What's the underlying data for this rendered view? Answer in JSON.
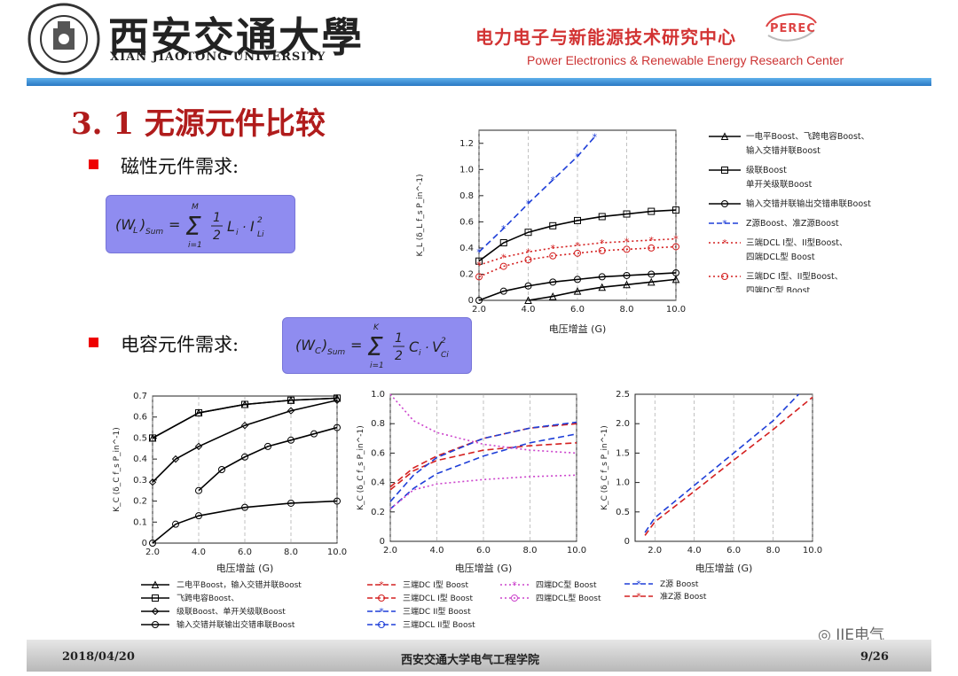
{
  "header": {
    "university_cn": "西安交通大學",
    "university_en": "XIAN JIAOTONG UNIVERSITY",
    "center_cn": "电力电子与新能源技术研究中心",
    "center_en": "Power Electronics & Renewable Energy Research Center",
    "center_logo": "PEREC"
  },
  "slide": {
    "title": "3. 1 无源元件比较",
    "magnetic_req": "磁性元件需求:",
    "capacitor_req": "电容元件需求:"
  },
  "formulas": {
    "magnetic": {
      "lhs": "(W",
      "lhs_sub": "L",
      "lhs_close": ")",
      "lhs_sub2": "Sum",
      "upper": "M",
      "lower": "i=1",
      "body": "L",
      "body_sub": "i",
      "term": "I",
      "term_sub": "Li",
      "term_sup": "2"
    },
    "capacitor": {
      "lhs": "(W",
      "lhs_sub": "C",
      "lhs_close": ")",
      "lhs_sub2": "Sum",
      "upper": "K",
      "lower": "i=1",
      "body": "C",
      "body_sub": "i",
      "term": "V",
      "term_sub": "Ci",
      "term_sup": "2"
    }
  },
  "chart_data": [
    {
      "type": "line",
      "xlabel": "电压增益 (G)",
      "ylabel": "K_L (δ_L f_s P_in^-1)",
      "xlim": [
        2.0,
        10.0
      ],
      "ylim": [
        0,
        1.3
      ],
      "xticks": [
        "2.0",
        "4.0",
        "6.0",
        "8.0",
        "10.0"
      ],
      "yticks": [
        "0",
        "0.2",
        "0.4",
        "0.6",
        "0.8",
        "1.0",
        "1.2"
      ],
      "series": [
        {
          "name": "一电平Boost、飞跨电容Boost、输入交错并联Boost",
          "color": "#000000",
          "dash": "solid",
          "marker": "triangle",
          "x": [
            4,
            5,
            6,
            7,
            8,
            9,
            10
          ],
          "y": [
            0.0,
            0.03,
            0.07,
            0.1,
            0.12,
            0.14,
            0.16
          ]
        },
        {
          "name": "级联Boost 单开关级联Boost",
          "color": "#000000",
          "dash": "solid",
          "marker": "square",
          "x": [
            2,
            3,
            4,
            5,
            6,
            7,
            8,
            9,
            10
          ],
          "y": [
            0.3,
            0.44,
            0.52,
            0.57,
            0.61,
            0.64,
            0.66,
            0.68,
            0.69
          ]
        },
        {
          "name": "输入交错并联输出交错串联Boost",
          "color": "#000000",
          "dash": "solid",
          "marker": "circle",
          "x": [
            2,
            3,
            4,
            5,
            6,
            7,
            8,
            9,
            10
          ],
          "y": [
            0.0,
            0.07,
            0.11,
            0.14,
            0.16,
            0.18,
            0.19,
            0.2,
            0.21
          ]
        },
        {
          "name": "Z源Boost、准Z源Boost",
          "color": "#1f3fd8",
          "dash": "dash",
          "marker": "asterisk",
          "x": [
            2,
            3,
            4,
            5,
            6,
            6.7
          ],
          "y": [
            0.37,
            0.55,
            0.74,
            0.92,
            1.1,
            1.25
          ]
        },
        {
          "name": "三端DCL I型、II型Boost、四端DCL型 Boost",
          "color": "#d42020",
          "dash": "dot",
          "marker": "asterisk",
          "x": [
            2,
            3,
            4,
            5,
            6,
            7,
            8,
            9,
            10
          ],
          "y": [
            0.27,
            0.33,
            0.37,
            0.4,
            0.42,
            0.44,
            0.45,
            0.46,
            0.47
          ]
        },
        {
          "name": "三端DC I型、II型Boost、四端DC型 Boost",
          "color": "#d42020",
          "dash": "dot",
          "marker": "circle",
          "x": [
            2,
            3,
            4,
            5,
            6,
            7,
            8,
            9,
            10
          ],
          "y": [
            0.18,
            0.26,
            0.31,
            0.34,
            0.36,
            0.38,
            0.39,
            0.4,
            0.41
          ]
        }
      ]
    },
    {
      "type": "line",
      "xlabel": "电压增益 (G)",
      "ylabel": "K_C (δ_C f_s P_in^-1)",
      "xlim": [
        2.0,
        10.0
      ],
      "ylim": [
        0,
        0.7
      ],
      "xticks": [
        "2.0",
        "4.0",
        "6.0",
        "8.0",
        "10.0"
      ],
      "yticks": [
        "0",
        "0.1",
        "0.2",
        "0.3",
        "0.4",
        "0.5",
        "0.6",
        "0.7"
      ],
      "series": [
        {
          "name": "二电平Boost、输入交错并联Boost",
          "color": "#000000",
          "marker": "triangle",
          "x": [
            2,
            4,
            6,
            8,
            10
          ],
          "y": [
            0.5,
            0.62,
            0.66,
            0.68,
            0.69
          ]
        },
        {
          "name": "飞跨电容Boost、",
          "color": "#000000",
          "marker": "square",
          "x": [
            2,
            4,
            6,
            8,
            10
          ],
          "y": [
            0.5,
            0.62,
            0.66,
            0.68,
            0.69
          ]
        },
        {
          "name": "级联Boost、单开关级联Boost",
          "color": "#000000",
          "marker": "diamond",
          "x": [
            2,
            3,
            4,
            6,
            8,
            10
          ],
          "y": [
            0.29,
            0.4,
            0.46,
            0.56,
            0.63,
            0.68
          ]
        },
        {
          "name": "输入交错并联输出交错串联Boost",
          "color": "#000000",
          "marker": "circle",
          "x": [
            4,
            5,
            6,
            7,
            8,
            9,
            10
          ],
          "y": [
            0.25,
            0.35,
            0.41,
            0.46,
            0.49,
            0.52,
            0.55
          ]
        },
        {
          "name": "",
          "color": "#000000",
          "marker": "circle",
          "x": [
            2,
            3,
            4,
            6,
            8,
            10
          ],
          "y": [
            0.0,
            0.09,
            0.13,
            0.17,
            0.19,
            0.2
          ]
        }
      ]
    },
    {
      "type": "line",
      "xlabel": "电压增益 (G)",
      "ylabel": "K_C (δ_C f_s P_in^-1)",
      "xlim": [
        2.0,
        10.0
      ],
      "ylim": [
        0,
        1.0
      ],
      "xticks": [
        "2.0",
        "4.0",
        "6.0",
        "8.0",
        "10.0"
      ],
      "yticks": [
        "0",
        "0.2",
        "0.4",
        "0.6",
        "0.8",
        "1.0"
      ],
      "series": [
        {
          "name": "三端DC I型 Boost",
          "color": "#d42020",
          "dash": "dash",
          "x": [
            2,
            3,
            4,
            6,
            8,
            10
          ],
          "y": [
            0.35,
            0.48,
            0.55,
            0.62,
            0.65,
            0.67
          ]
        },
        {
          "name": "三端DCL I型 Boost",
          "color": "#d42020",
          "dash": "dash",
          "x": [
            2,
            3,
            4,
            6,
            8,
            10
          ],
          "y": [
            0.37,
            0.5,
            0.58,
            0.7,
            0.77,
            0.8
          ]
        },
        {
          "name": "三端DC II型 Boost",
          "color": "#1f3fd8",
          "dash": "dash",
          "x": [
            2,
            3,
            4,
            6,
            8,
            10
          ],
          "y": [
            0.22,
            0.36,
            0.46,
            0.58,
            0.67,
            0.73
          ]
        },
        {
          "name": "三端DCL II型 Boost",
          "color": "#1f3fd8",
          "dash": "dash",
          "x": [
            2,
            3,
            4,
            6,
            8,
            10
          ],
          "y": [
            0.27,
            0.45,
            0.57,
            0.7,
            0.77,
            0.81
          ]
        },
        {
          "name": "四端DC型 Boost",
          "color": "#cc44cc",
          "dash": "dot",
          "x": [
            2,
            3,
            4,
            6,
            8,
            10
          ],
          "y": [
            1.0,
            0.82,
            0.74,
            0.66,
            0.62,
            0.6
          ]
        },
        {
          "name": "四端DCL型 Boost",
          "color": "#cc44cc",
          "dash": "dot",
          "x": [
            2,
            3,
            4,
            6,
            8,
            10
          ],
          "y": [
            0.22,
            0.35,
            0.39,
            0.42,
            0.44,
            0.45
          ]
        }
      ]
    },
    {
      "type": "line",
      "xlabel": "电压增益 (G)",
      "ylabel": "K_C (δ_C f_s P_in^-1)",
      "xlim": [
        1.0,
        10.0
      ],
      "ylim": [
        0,
        2.5
      ],
      "xticks": [
        "2.0",
        "4.0",
        "6.0",
        "8.0",
        "10.0"
      ],
      "yticks": [
        "0",
        "0.5",
        "1.0",
        "1.5",
        "2.0",
        "2.5"
      ],
      "series": [
        {
          "name": "Z源 Boost",
          "color": "#1f3fd8",
          "dash": "dash",
          "x": [
            1.5,
            2,
            4,
            6,
            8,
            9.3
          ],
          "y": [
            0.15,
            0.4,
            0.95,
            1.5,
            2.05,
            2.5
          ]
        },
        {
          "name": "准Z源 Boost",
          "color": "#d42020",
          "dash": "dash",
          "x": [
            1.5,
            2,
            4,
            6,
            8,
            10
          ],
          "y": [
            0.1,
            0.33,
            0.85,
            1.38,
            1.9,
            2.45
          ]
        }
      ]
    }
  ],
  "legends": {
    "top": [
      {
        "lines": [
          "一电平Boost、飞跨电容Boost、",
          "输入交错并联Boost"
        ],
        "marker": "triangle",
        "color": "#000000"
      },
      {
        "lines": [
          "级联Boost",
          "单开关级联Boost"
        ],
        "marker": "square",
        "color": "#000000"
      },
      {
        "lines": [
          "输入交错并联输出交错串联Boost"
        ],
        "marker": "circle",
        "color": "#000000"
      },
      {
        "lines": [
          "Z源Boost、准Z源Boost"
        ],
        "marker": "asterisk",
        "color": "#1f3fd8"
      },
      {
        "lines": [
          "三端DCL I型、II型Boost、",
          "四端DCL型 Boost"
        ],
        "marker": "asterisk",
        "color": "#d42020"
      },
      {
        "lines": [
          "三端DC I型、II型Boost、",
          "四端DC型 Boost"
        ],
        "marker": "circle",
        "color": "#d42020"
      }
    ],
    "bottom_left": [
      "二电平Boost，输入交错并联Boost",
      "飞跨电容Boost、",
      "级联Boost、单开关级联Boost",
      "输入交错并联输出交错串联Boost"
    ],
    "bottom_mid": [
      "三端DC I型 Boost",
      "三端DCL I型 Boost",
      "三端DC II型 Boost",
      "三端DCL II型 Boost",
      "四端DC型 Boost",
      "四端DCL型 Boost"
    ],
    "bottom_right": [
      "Z源 Boost",
      "准Z源 Boost"
    ]
  },
  "footer": {
    "date": "2018/04/20",
    "school": "西安交通大学电气工程学院",
    "page": "9/26"
  },
  "watermark": "IIE电气"
}
